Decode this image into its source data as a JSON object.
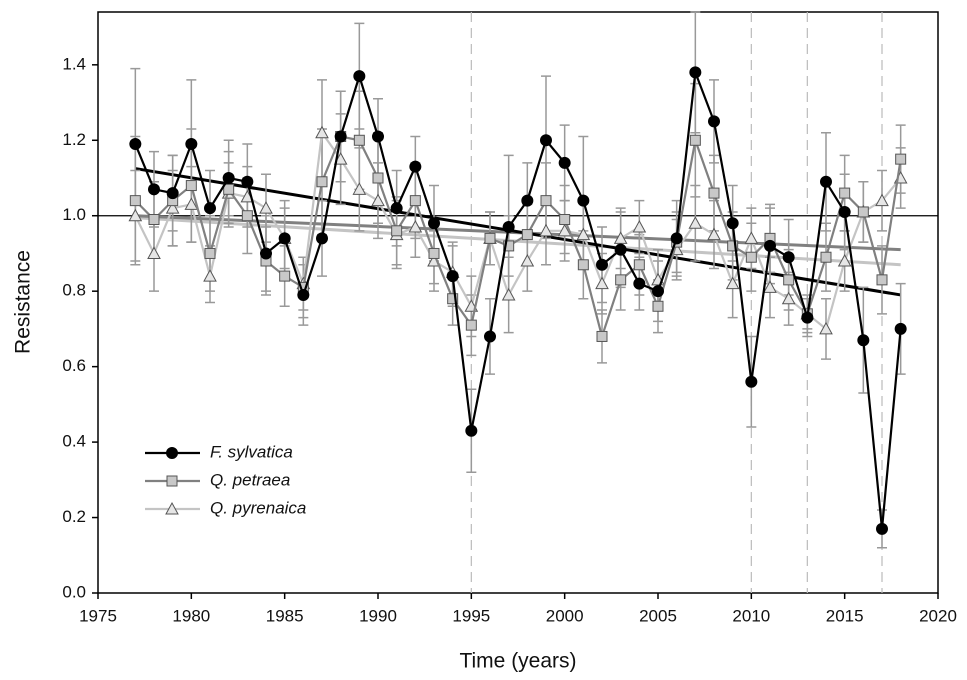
{
  "chart_data": {
    "type": "line",
    "xlabel": "Time (years)",
    "ylabel": "Resistance",
    "x": [
      1977,
      1978,
      1979,
      1980,
      1981,
      1982,
      1983,
      1984,
      1985,
      1986,
      1987,
      1988,
      1989,
      1990,
      1991,
      1992,
      1993,
      1994,
      1995,
      1996,
      1997,
      1998,
      1999,
      2000,
      2001,
      2002,
      2003,
      2004,
      2005,
      2006,
      2007,
      2008,
      2009,
      2010,
      2011,
      2012,
      2013,
      2014,
      2015,
      2016,
      2017,
      2018
    ],
    "series": [
      {
        "name": "Q. pyrenaica",
        "color": "#c4c4c4",
        "marker": "triangle",
        "marker_fill": "#e6e6e6",
        "values": [
          1.0,
          0.9,
          1.02,
          1.03,
          0.84,
          1.06,
          1.05,
          1.02,
          0.94,
          0.82,
          1.22,
          1.15,
          1.07,
          1.04,
          0.95,
          0.97,
          0.88,
          0.85,
          0.76,
          0.94,
          0.79,
          0.88,
          0.96,
          0.96,
          0.95,
          0.82,
          0.94,
          0.97,
          0.83,
          0.91,
          0.98,
          0.95,
          0.82,
          0.94,
          0.81,
          0.78,
          0.74,
          0.7,
          0.88,
          1.01,
          1.04,
          1.1
        ],
        "errors": [
          0.12,
          0.1,
          0.1,
          0.1,
          0.07,
          0.08,
          0.08,
          0.09,
          0.08,
          0.07,
          0.14,
          0.12,
          0.11,
          0.1,
          0.09,
          0.08,
          0.08,
          0.08,
          0.08,
          0.07,
          0.1,
          0.08,
          0.09,
          0.08,
          0.09,
          0.08,
          0.08,
          0.07,
          0.08,
          0.08,
          0.1,
          0.09,
          0.09,
          0.08,
          0.08,
          0.07,
          0.05,
          0.08,
          0.08,
          0.08,
          0.08,
          0.08
        ],
        "trend": [
          0.995,
          0.87
        ]
      },
      {
        "name": "Q. petraea",
        "color": "#808080",
        "marker": "square",
        "marker_fill": "#c8c8c8",
        "values": [
          1.04,
          0.99,
          1.04,
          1.08,
          0.9,
          1.07,
          1.0,
          0.88,
          0.84,
          0.81,
          1.09,
          1.21,
          1.2,
          1.1,
          0.96,
          1.04,
          0.9,
          0.78,
          0.71,
          0.94,
          0.92,
          0.95,
          1.04,
          0.99,
          0.87,
          0.68,
          0.83,
          0.87,
          0.76,
          0.93,
          1.2,
          1.06,
          0.92,
          0.89,
          0.94,
          0.83,
          0.74,
          0.89,
          1.06,
          1.01,
          0.83,
          1.15
        ],
        "errors": [
          0.17,
          0.1,
          0.12,
          0.15,
          0.1,
          0.1,
          0.1,
          0.09,
          0.08,
          0.08,
          0.14,
          0.12,
          0.13,
          0.12,
          0.09,
          0.1,
          0.08,
          0.07,
          0.08,
          0.07,
          0.08,
          0.08,
          0.1,
          0.09,
          0.09,
          0.07,
          0.08,
          0.08,
          0.07,
          0.08,
          0.15,
          0.1,
          0.09,
          0.09,
          0.09,
          0.08,
          0.04,
          0.09,
          0.1,
          0.08,
          0.09,
          0.09
        ],
        "trend": [
          1.0,
          0.91
        ]
      },
      {
        "name": "F. sylvatica",
        "color": "#000000",
        "marker": "circle",
        "marker_fill": "#000000",
        "values": [
          1.19,
          1.07,
          1.06,
          1.19,
          1.02,
          1.1,
          1.09,
          0.9,
          0.94,
          0.79,
          0.94,
          1.21,
          1.37,
          1.21,
          1.02,
          1.13,
          0.98,
          0.84,
          0.43,
          0.68,
          0.97,
          1.04,
          1.2,
          1.14,
          1.04,
          0.87,
          0.91,
          0.82,
          0.8,
          0.94,
          1.38,
          1.25,
          0.98,
          0.56,
          0.92,
          0.89,
          0.73,
          1.09,
          1.01,
          0.67,
          0.17,
          0.7
        ],
        "errors": [
          0.2,
          0.1,
          0.1,
          0.17,
          0.1,
          0.1,
          0.1,
          0.1,
          0.1,
          0.08,
          0.1,
          0.12,
          0.14,
          0.1,
          0.1,
          0.08,
          0.1,
          0.08,
          0.11,
          0.1,
          0.19,
          0.1,
          0.17,
          0.1,
          0.17,
          0.1,
          0.1,
          0.07,
          0.08,
          0.1,
          0.16,
          0.11,
          0.1,
          0.12,
          0.1,
          0.1,
          0.05,
          0.13,
          0.1,
          0.14,
          0.05,
          0.12
        ],
        "trend": [
          1.125,
          0.79
        ]
      }
    ],
    "trend_x": [
      1977,
      2018
    ],
    "hline": 1.0,
    "vlines": [
      1995,
      2010,
      2013,
      2017
    ],
    "xlim": [
      1975,
      2020
    ],
    "xticks": [
      1975,
      1980,
      1985,
      1990,
      1995,
      2000,
      2005,
      2010,
      2015,
      2020
    ],
    "ylim": [
      0,
      1.54
    ],
    "yticks": [
      {
        "value": 0,
        "label": "0.0"
      },
      0.2,
      0.4,
      0.6,
      0.8,
      {
        "value": 1,
        "label": "1.0"
      },
      1.2,
      1.4
    ],
    "legend_order": [
      2,
      1,
      0
    ]
  }
}
